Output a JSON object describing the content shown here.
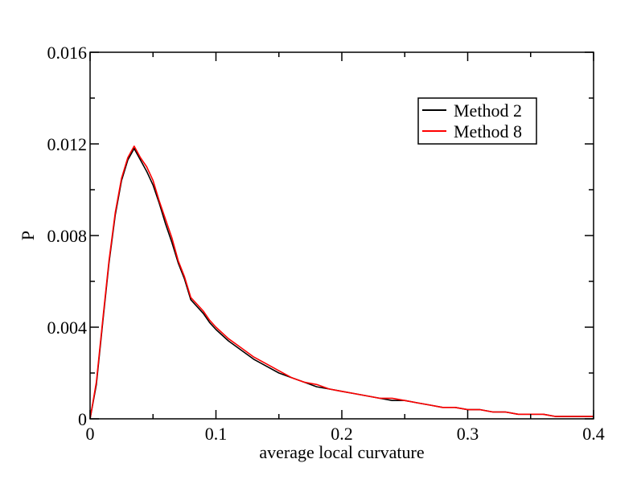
{
  "chart_data": {
    "type": "line",
    "title": "",
    "xlabel": "average local curvature",
    "ylabel": "P",
    "xlim": [
      0,
      0.4
    ],
    "ylim": [
      0,
      0.016
    ],
    "x_ticks": [
      0,
      0.1,
      0.2,
      0.3,
      0.4
    ],
    "x_tick_labels": [
      "0",
      "0.1",
      "0.2",
      "0.3",
      "0.4"
    ],
    "y_ticks": [
      0,
      0.004,
      0.008,
      0.012,
      0.016
    ],
    "y_tick_labels": [
      "0",
      "0.004",
      "0.008",
      "0.012",
      "0.016"
    ],
    "grid": false,
    "legend_position": "top-right",
    "series": [
      {
        "name": "Method 2",
        "color": "#000000",
        "x": [
          0,
          0.005,
          0.01,
          0.015,
          0.02,
          0.025,
          0.03,
          0.035,
          0.04,
          0.045,
          0.05,
          0.055,
          0.06,
          0.065,
          0.07,
          0.075,
          0.08,
          0.085,
          0.09,
          0.095,
          0.1,
          0.11,
          0.12,
          0.13,
          0.14,
          0.15,
          0.16,
          0.17,
          0.18,
          0.19,
          0.2,
          0.21,
          0.22,
          0.23,
          0.24,
          0.25,
          0.26,
          0.27,
          0.28,
          0.29,
          0.3,
          0.31,
          0.32,
          0.33,
          0.34,
          0.35,
          0.36,
          0.37,
          0.38,
          0.39,
          0.4
        ],
        "y": [
          0,
          0.0015,
          0.0042,
          0.0068,
          0.0089,
          0.0104,
          0.0113,
          0.0118,
          0.0113,
          0.0108,
          0.0102,
          0.0094,
          0.0085,
          0.0077,
          0.0068,
          0.0061,
          0.0052,
          0.0049,
          0.0046,
          0.0042,
          0.0039,
          0.0034,
          0.003,
          0.0026,
          0.0023,
          0.002,
          0.0018,
          0.0016,
          0.0014,
          0.0013,
          0.0012,
          0.0011,
          0.001,
          0.0009,
          0.0008,
          0.0008,
          0.0007,
          0.0006,
          0.0005,
          0.0005,
          0.0004,
          0.0004,
          0.0003,
          0.0003,
          0.0002,
          0.0002,
          0.0002,
          0.0001,
          0.0001,
          0.0001,
          0.0001
        ]
      },
      {
        "name": "Method 8",
        "color": "#ff0000",
        "x": [
          0,
          0.005,
          0.01,
          0.015,
          0.02,
          0.025,
          0.03,
          0.035,
          0.04,
          0.045,
          0.05,
          0.055,
          0.06,
          0.065,
          0.07,
          0.075,
          0.08,
          0.085,
          0.09,
          0.095,
          0.1,
          0.11,
          0.12,
          0.13,
          0.14,
          0.15,
          0.16,
          0.17,
          0.18,
          0.19,
          0.2,
          0.21,
          0.22,
          0.23,
          0.24,
          0.25,
          0.26,
          0.27,
          0.28,
          0.29,
          0.3,
          0.31,
          0.32,
          0.33,
          0.34,
          0.35,
          0.36,
          0.37,
          0.38,
          0.39,
          0.4
        ],
        "y": [
          0,
          0.0016,
          0.0043,
          0.0069,
          0.009,
          0.0105,
          0.0114,
          0.0119,
          0.0114,
          0.011,
          0.0104,
          0.0095,
          0.0087,
          0.0079,
          0.0069,
          0.0062,
          0.0053,
          0.005,
          0.0047,
          0.0043,
          0.004,
          0.0035,
          0.0031,
          0.0027,
          0.0024,
          0.0021,
          0.0018,
          0.0016,
          0.0015,
          0.0013,
          0.0012,
          0.0011,
          0.001,
          0.0009,
          0.0009,
          0.0008,
          0.0007,
          0.0006,
          0.0005,
          0.0005,
          0.0004,
          0.0004,
          0.0003,
          0.0003,
          0.0002,
          0.0002,
          0.0002,
          0.0001,
          0.0001,
          0.0001,
          0.0001
        ]
      }
    ]
  }
}
